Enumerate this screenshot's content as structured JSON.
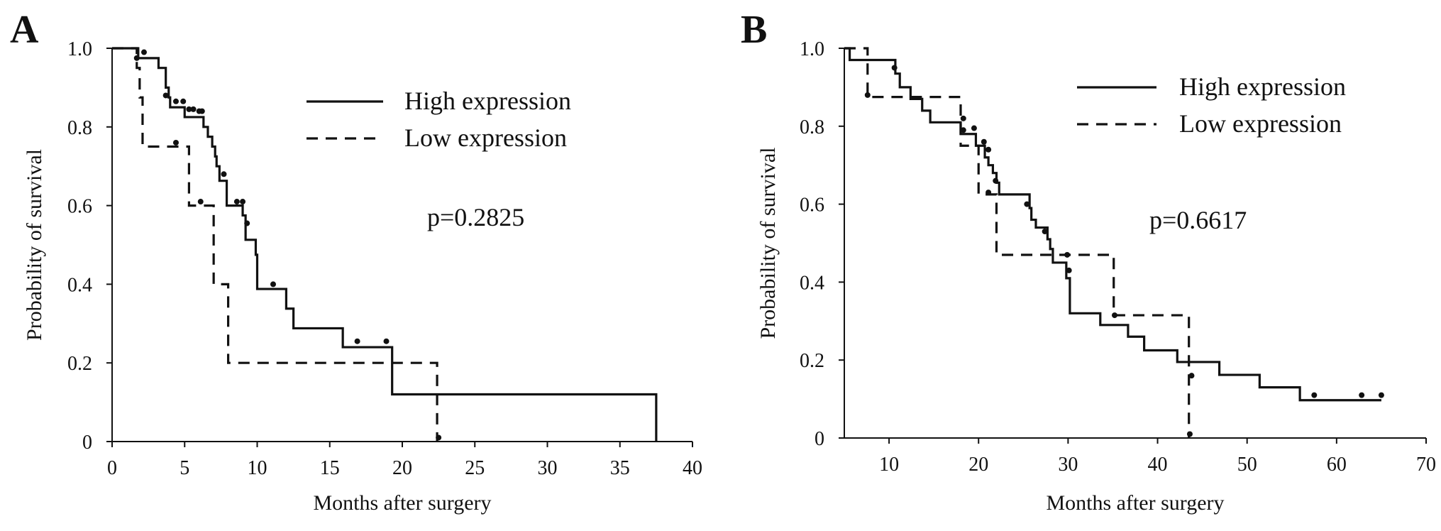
{
  "chart_data": [
    {
      "type": "line",
      "panel_label": "A",
      "xlabel": "Months after surgery",
      "ylabel": "Probability of survival",
      "xlim": [
        0,
        40
      ],
      "ylim": [
        0,
        1.0
      ],
      "x_ticks": [
        0,
        5,
        10,
        15,
        20,
        25,
        30,
        35,
        40
      ],
      "x_tick_labels": [
        "0",
        "5",
        "10",
        "15",
        "20",
        "25",
        "30",
        "35",
        "40"
      ],
      "y_ticks": [
        0,
        0.2,
        0.4,
        0.6,
        0.8,
        1.0
      ],
      "y_tick_labels": [
        "0",
        "0.2",
        "0.4",
        "0.6",
        "0.8",
        "1.0"
      ],
      "grid": false,
      "legend_position": "top-right",
      "annotation": "p=0.2825",
      "series": [
        {
          "name": "High expression",
          "style": "solid",
          "steps": [
            [
              0,
              1.0
            ],
            [
              1.8,
              0.975
            ],
            [
              3.2,
              0.95
            ],
            [
              3.7,
              0.9
            ],
            [
              3.9,
              0.875
            ],
            [
              4.0,
              0.85
            ],
            [
              5.0,
              0.825
            ],
            [
              6.3,
              0.8
            ],
            [
              6.6,
              0.775
            ],
            [
              6.9,
              0.75
            ],
            [
              7.1,
              0.725
            ],
            [
              7.2,
              0.7
            ],
            [
              7.4,
              0.663
            ],
            [
              7.9,
              0.6
            ],
            [
              9.0,
              0.575
            ],
            [
              9.2,
              0.513
            ],
            [
              9.9,
              0.475
            ],
            [
              10.0,
              0.388
            ],
            [
              12.0,
              0.338
            ],
            [
              12.5,
              0.288
            ],
            [
              15.9,
              0.24
            ],
            [
              19.3,
              0.12
            ],
            [
              37.5,
              0.0
            ]
          ],
          "end_x": 37.5,
          "censored": [
            [
              2.2,
              0.99
            ],
            [
              3.7,
              0.88
            ],
            [
              4.4,
              0.865
            ],
            [
              4.9,
              0.865
            ],
            [
              5.3,
              0.845
            ],
            [
              5.6,
              0.845
            ],
            [
              6.0,
              0.84
            ],
            [
              6.2,
              0.84
            ],
            [
              7.7,
              0.68
            ],
            [
              8.6,
              0.61
            ],
            [
              9.0,
              0.61
            ],
            [
              9.3,
              0.555
            ],
            [
              11.1,
              0.4
            ],
            [
              16.9,
              0.255
            ],
            [
              18.9,
              0.255
            ]
          ]
        },
        {
          "name": "Low expression",
          "style": "dashed",
          "steps": [
            [
              0,
              1.0
            ],
            [
              1.7,
              0.95
            ],
            [
              1.9,
              0.875
            ],
            [
              2.1,
              0.75
            ],
            [
              5.3,
              0.6
            ],
            [
              7.0,
              0.4
            ],
            [
              8.0,
              0.2
            ],
            [
              22.4,
              0.0
            ]
          ],
          "end_x": 22.4,
          "censored": [
            [
              1.7,
              0.975
            ],
            [
              4.4,
              0.76
            ],
            [
              6.1,
              0.61
            ],
            [
              22.5,
              0.01
            ]
          ]
        }
      ]
    },
    {
      "type": "line",
      "panel_label": "B",
      "xlabel": "Months after surgery",
      "ylabel": "Probability of survival",
      "xlim": [
        5,
        70
      ],
      "ylim": [
        0,
        1.0
      ],
      "x_ticks": [
        10,
        20,
        30,
        40,
        50,
        60,
        70
      ],
      "x_tick_labels": [
        "10",
        "20",
        "30",
        "40",
        "50",
        "60",
        "70"
      ],
      "y_ticks": [
        0,
        0.2,
        0.4,
        0.6,
        0.8,
        1.0
      ],
      "y_tick_labels": [
        "0",
        "0.2",
        "0.4",
        "0.6",
        "0.8",
        "1.0"
      ],
      "grid": false,
      "legend_position": "top-right",
      "annotation": "p=0.6617",
      "series": [
        {
          "name": "High expression",
          "style": "solid",
          "steps": [
            [
              5,
              1.0
            ],
            [
              5.6,
              0.97
            ],
            [
              10.7,
              0.935
            ],
            [
              11.2,
              0.9
            ],
            [
              12.4,
              0.87
            ],
            [
              13.7,
              0.84
            ],
            [
              14.6,
              0.81
            ],
            [
              18.0,
              0.78
            ],
            [
              19.7,
              0.75
            ],
            [
              20.7,
              0.72
            ],
            [
              21.1,
              0.7
            ],
            [
              21.6,
              0.68
            ],
            [
              22.0,
              0.655
            ],
            [
              22.3,
              0.625
            ],
            [
              25.7,
              0.59
            ],
            [
              25.9,
              0.56
            ],
            [
              26.4,
              0.54
            ],
            [
              27.7,
              0.51
            ],
            [
              28.0,
              0.485
            ],
            [
              28.3,
              0.45
            ],
            [
              29.8,
              0.41
            ],
            [
              30.2,
              0.32
            ],
            [
              33.6,
              0.29
            ],
            [
              36.7,
              0.26
            ],
            [
              38.5,
              0.225
            ],
            [
              42.2,
              0.195
            ],
            [
              46.9,
              0.162
            ],
            [
              51.4,
              0.13
            ],
            [
              55.9,
              0.097
            ]
          ],
          "end_x": 65,
          "censored": [
            [
              10.6,
              0.95
            ],
            [
              18.3,
              0.82
            ],
            [
              19.5,
              0.795
            ],
            [
              20.6,
              0.76
            ],
            [
              21.1,
              0.74
            ],
            [
              21.9,
              0.66
            ],
            [
              25.4,
              0.6
            ],
            [
              27.4,
              0.53
            ],
            [
              30.1,
              0.43
            ],
            [
              43.8,
              0.16
            ],
            [
              57.5,
              0.11
            ],
            [
              62.8,
              0.11
            ],
            [
              65,
              0.11
            ]
          ]
        },
        {
          "name": "Low expression",
          "style": "dashed",
          "steps": [
            [
              5,
              1.0
            ],
            [
              5.6,
              1.0
            ],
            [
              7.6,
              0.875
            ],
            [
              18.0,
              0.75
            ],
            [
              20.0,
              0.625
            ],
            [
              22.0,
              0.47
            ],
            [
              35.1,
              0.315
            ],
            [
              43.5,
              0.0
            ]
          ],
          "end_x": 43.5,
          "censored": [
            [
              7.6,
              0.88
            ],
            [
              18.3,
              0.79
            ],
            [
              21.1,
              0.63
            ],
            [
              29.9,
              0.47
            ],
            [
              35.2,
              0.315
            ],
            [
              43.6,
              0.01
            ]
          ]
        }
      ]
    }
  ]
}
